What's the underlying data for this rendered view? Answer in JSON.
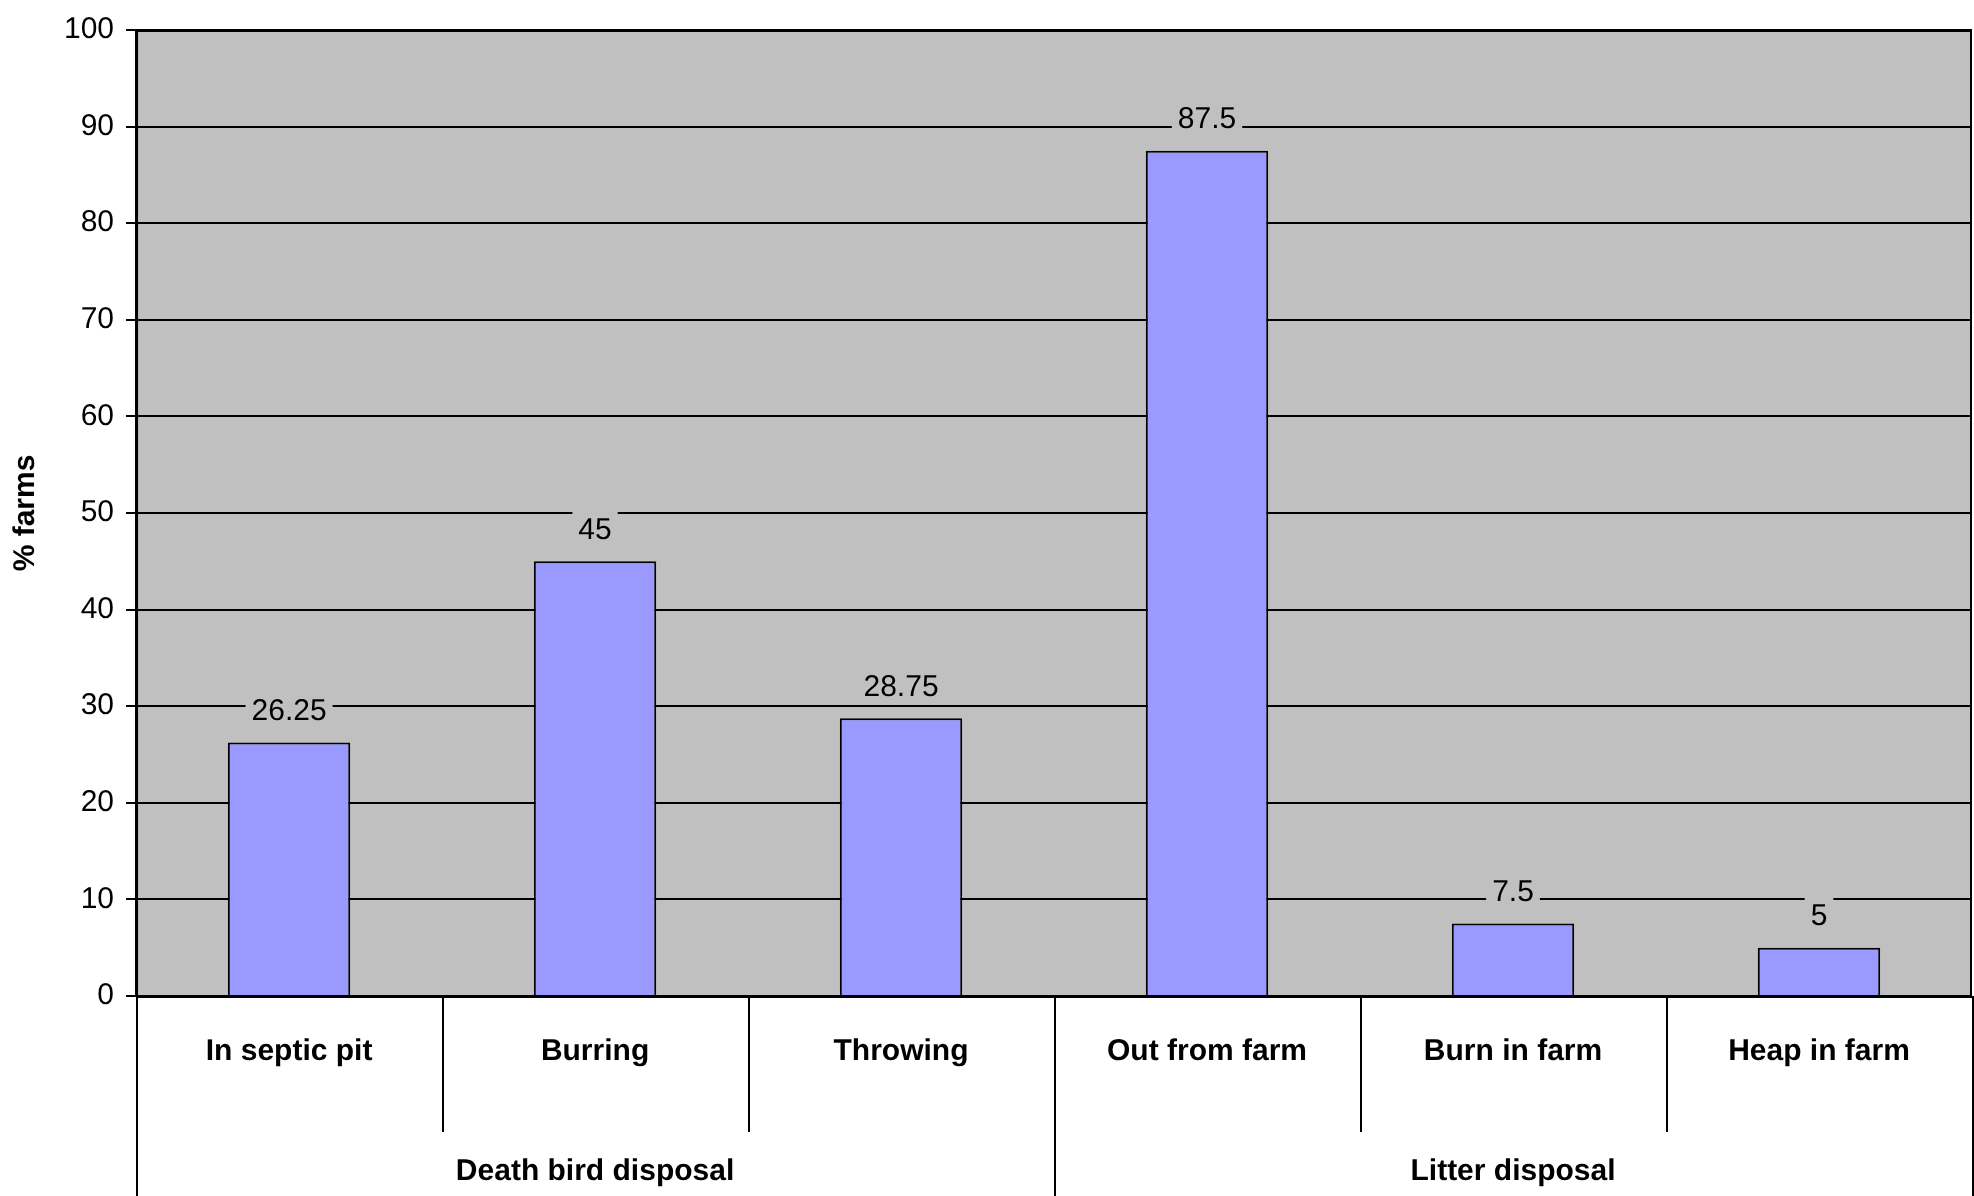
{
  "chart_data": {
    "type": "bar",
    "ylabel": "% farms",
    "categories": [
      "In septic pit",
      "Burring",
      "Throwing",
      "Out from farm",
      "Burn in farm",
      "Heap in farm"
    ],
    "values": [
      26.25,
      45,
      28.75,
      87.5,
      7.5,
      5
    ],
    "color": "#9999ff",
    "ylim": [
      0,
      100
    ],
    "yticks": [
      0,
      10,
      20,
      30,
      40,
      50,
      60,
      70,
      80,
      90,
      100
    ],
    "grid": "y",
    "data_labels": true,
    "legend": false,
    "annotations": [
      "Death bird disposal",
      "Litter disposal"
    ]
  }
}
